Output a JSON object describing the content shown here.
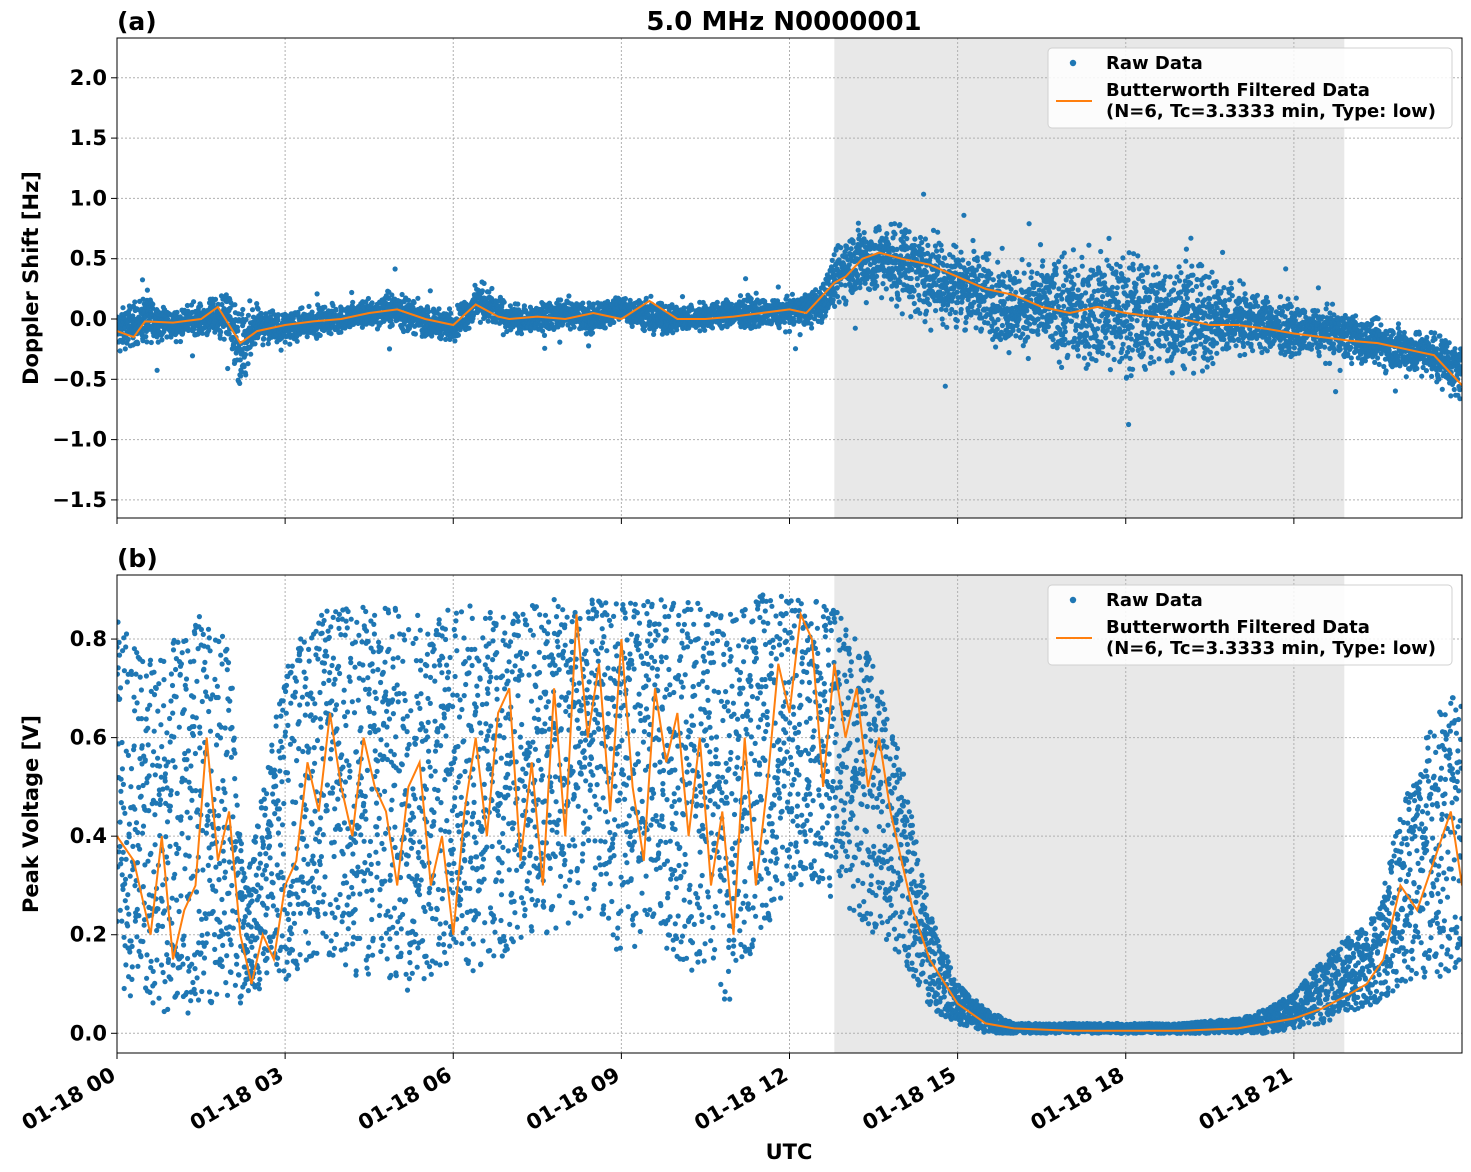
{
  "title": "5.0 MHz N0000001",
  "xlabel": "UTC",
  "x_tick_labels": [
    "01-18 00",
    "01-18 03",
    "01-18 06",
    "01-18 09",
    "01-18 12",
    "01-18 15",
    "01-18 18",
    "01-18 21"
  ],
  "colors": {
    "raw": "#1f77b4",
    "filtered": "#ff7f0e",
    "shade": "#e8e8e8"
  },
  "chart_data": [
    {
      "type": "scatter",
      "panel_label": "(a)",
      "ylabel": "Doppler Shift [Hz]",
      "xlim_hours": [
        0,
        24
      ],
      "ylim": [
        -1.65,
        2.33
      ],
      "y_ticks": [
        -1.5,
        -1.0,
        -0.5,
        0.0,
        0.5,
        1.0,
        1.5,
        2.0
      ],
      "y_tick_labels": [
        "−1.5",
        "−1.0",
        "−0.5",
        "0.0",
        "0.5",
        "1.0",
        "1.5",
        "2.0"
      ],
      "shaded_span_hours": [
        12.8,
        21.9
      ],
      "grid": true,
      "legend_placement": "upper-right",
      "legend": [
        "Raw Data",
        "Butterworth Filtered Data",
        "(N=6, Tc=3.3333 min, Type: low)"
      ],
      "series": [
        {
          "name": "Raw Data",
          "style": "points",
          "x_hours": [
            0,
            0.5,
            1,
            1.5,
            2,
            2.2,
            2.5,
            3,
            3.5,
            4,
            4.5,
            5,
            5.5,
            6,
            6.5,
            7,
            7.5,
            8,
            8.5,
            9,
            9.5,
            10,
            10.5,
            11,
            11.5,
            12,
            12.5,
            12.8,
            13,
            13.3,
            13.6,
            14,
            14.5,
            15,
            15.5,
            16,
            16.5,
            17,
            17.5,
            18,
            18.5,
            19,
            19.5,
            20,
            20.5,
            21,
            21.5,
            22,
            22.5,
            23,
            23.5,
            24
          ],
          "center": [
            -0.1,
            0.0,
            -0.05,
            0.0,
            0.02,
            -0.3,
            -0.05,
            -0.08,
            -0.02,
            0.0,
            0.05,
            0.08,
            -0.02,
            -0.05,
            0.15,
            0.0,
            0.0,
            0.05,
            0.0,
            0.1,
            0.0,
            0.0,
            0.02,
            0.05,
            0.05,
            0.05,
            0.1,
            0.3,
            0.45,
            0.5,
            0.5,
            0.45,
            0.35,
            0.3,
            0.2,
            0.1,
            0.1,
            0.05,
            0.1,
            0.05,
            0.05,
            0.0,
            0.0,
            0.0,
            -0.05,
            -0.1,
            -0.1,
            -0.15,
            -0.2,
            -0.25,
            -0.3,
            -0.45
          ],
          "spread": [
            0.2,
            0.25,
            0.15,
            0.15,
            0.25,
            0.5,
            0.2,
            0.15,
            0.15,
            0.15,
            0.15,
            0.2,
            0.15,
            0.15,
            0.2,
            0.15,
            0.15,
            0.15,
            0.15,
            0.15,
            0.15,
            0.15,
            0.15,
            0.15,
            0.15,
            0.15,
            0.2,
            0.3,
            0.35,
            0.4,
            0.4,
            0.45,
            0.45,
            0.45,
            0.45,
            0.45,
            0.5,
            0.55,
            0.6,
            0.6,
            0.6,
            0.55,
            0.5,
            0.4,
            0.3,
            0.25,
            0.25,
            0.25,
            0.25,
            0.25,
            0.25,
            0.3
          ]
        },
        {
          "name": "Butterworth Filtered Data",
          "style": "line",
          "x_hours": [
            0,
            0.3,
            0.5,
            1,
            1.5,
            1.8,
            2,
            2.2,
            2.5,
            3,
            3.5,
            4,
            4.5,
            5,
            5.5,
            6,
            6.4,
            6.8,
            7,
            7.5,
            8,
            8.5,
            9,
            9.5,
            10,
            10.5,
            11,
            11.5,
            12,
            12.3,
            12.6,
            12.8,
            13,
            13.3,
            13.6,
            14,
            14.5,
            15,
            15.5,
            16,
            16.5,
            17,
            17.5,
            18,
            18.5,
            19,
            19.5,
            20,
            20.5,
            21,
            21.5,
            22,
            22.5,
            23,
            23.5,
            24
          ],
          "values": [
            -0.1,
            -0.15,
            -0.02,
            -0.03,
            0.0,
            0.1,
            -0.05,
            -0.2,
            -0.1,
            -0.05,
            -0.02,
            0.0,
            0.05,
            0.08,
            0.0,
            -0.05,
            0.12,
            0.02,
            0.0,
            0.02,
            0.0,
            0.05,
            0.0,
            0.15,
            0.0,
            0.0,
            0.02,
            0.05,
            0.08,
            0.05,
            0.2,
            0.3,
            0.35,
            0.5,
            0.55,
            0.5,
            0.45,
            0.35,
            0.25,
            0.2,
            0.1,
            0.05,
            0.1,
            0.05,
            0.02,
            0.0,
            -0.05,
            -0.05,
            -0.08,
            -0.12,
            -0.15,
            -0.18,
            -0.2,
            -0.25,
            -0.3,
            -0.55
          ]
        }
      ]
    },
    {
      "type": "scatter",
      "panel_label": "(b)",
      "ylabel": "Peak Voltage [V]",
      "xlim_hours": [
        0,
        24
      ],
      "ylim": [
        -0.04,
        0.93
      ],
      "y_ticks": [
        0.0,
        0.2,
        0.4,
        0.6,
        0.8
      ],
      "y_tick_labels": [
        "0.0",
        "0.2",
        "0.4",
        "0.6",
        "0.8"
      ],
      "shaded_span_hours": [
        12.8,
        21.9
      ],
      "grid": true,
      "legend_placement": "upper-right",
      "legend": [
        "Raw Data",
        "Butterworth Filtered Data",
        "(N=6, Tc=3.3333 min, Type: low)"
      ],
      "series": [
        {
          "name": "Raw Data",
          "style": "points",
          "x_hours": [
            0,
            0.5,
            1,
            1.5,
            2,
            2.3,
            2.6,
            3,
            3.5,
            4,
            4.5,
            5,
            5.5,
            6,
            6.5,
            7,
            7.5,
            8,
            8.5,
            9,
            9.5,
            10,
            10.5,
            11,
            11.5,
            12,
            12.5,
            13,
            13.5,
            14,
            14.5,
            15,
            15.5,
            16,
            16.5,
            17,
            18,
            19,
            20,
            20.5,
            21,
            21.5,
            22,
            22.5,
            23,
            23.5,
            24
          ],
          "low": [
            0.1,
            0.05,
            0.02,
            0.05,
            0.05,
            0.05,
            0.1,
            0.1,
            0.15,
            0.12,
            0.1,
            0.08,
            0.1,
            0.15,
            0.1,
            0.15,
            0.2,
            0.2,
            0.25,
            0.15,
            0.2,
            0.15,
            0.1,
            0.05,
            0.2,
            0.3,
            0.3,
            0.25,
            0.2,
            0.15,
            0.05,
            0.02,
            0.0,
            0.0,
            0.0,
            0.0,
            0.0,
            0.0,
            0.0,
            0.0,
            0.01,
            0.02,
            0.04,
            0.06,
            0.1,
            0.12,
            0.1
          ],
          "high": [
            0.85,
            0.75,
            0.8,
            0.85,
            0.8,
            0.3,
            0.5,
            0.75,
            0.85,
            0.87,
            0.87,
            0.87,
            0.85,
            0.87,
            0.87,
            0.85,
            0.88,
            0.88,
            0.88,
            0.88,
            0.88,
            0.88,
            0.87,
            0.85,
            0.89,
            0.89,
            0.88,
            0.85,
            0.75,
            0.55,
            0.25,
            0.1,
            0.05,
            0.02,
            0.02,
            0.02,
            0.02,
            0.02,
            0.03,
            0.05,
            0.08,
            0.15,
            0.2,
            0.25,
            0.5,
            0.65,
            0.7
          ]
        },
        {
          "name": "Butterworth Filtered Data",
          "style": "line",
          "x_hours": [
            0,
            0.3,
            0.6,
            0.8,
            1,
            1.2,
            1.4,
            1.6,
            1.8,
            2,
            2.2,
            2.4,
            2.6,
            2.8,
            3,
            3.2,
            3.4,
            3.6,
            3.8,
            4,
            4.2,
            4.4,
            4.6,
            4.8,
            5,
            5.2,
            5.4,
            5.6,
            5.8,
            6,
            6.2,
            6.4,
            6.6,
            6.8,
            7,
            7.2,
            7.4,
            7.6,
            7.8,
            8,
            8.2,
            8.4,
            8.6,
            8.8,
            9,
            9.2,
            9.4,
            9.6,
            9.8,
            10,
            10.2,
            10.4,
            10.6,
            10.8,
            11,
            11.2,
            11.4,
            11.6,
            11.8,
            12,
            12.2,
            12.4,
            12.6,
            12.8,
            13,
            13.2,
            13.4,
            13.6,
            13.8,
            14,
            14.2,
            14.5,
            15,
            15.5,
            16,
            17,
            18,
            19,
            20,
            20.5,
            21,
            21.5,
            22,
            22.3,
            22.6,
            22.9,
            23.2,
            23.5,
            23.8,
            24
          ],
          "values": [
            0.4,
            0.35,
            0.2,
            0.4,
            0.15,
            0.25,
            0.3,
            0.6,
            0.35,
            0.45,
            0.2,
            0.1,
            0.2,
            0.15,
            0.3,
            0.35,
            0.55,
            0.45,
            0.65,
            0.5,
            0.4,
            0.6,
            0.5,
            0.45,
            0.3,
            0.5,
            0.55,
            0.3,
            0.4,
            0.2,
            0.45,
            0.6,
            0.4,
            0.65,
            0.7,
            0.35,
            0.55,
            0.3,
            0.7,
            0.4,
            0.85,
            0.6,
            0.75,
            0.45,
            0.8,
            0.5,
            0.35,
            0.7,
            0.55,
            0.65,
            0.4,
            0.6,
            0.3,
            0.45,
            0.2,
            0.6,
            0.3,
            0.5,
            0.75,
            0.65,
            0.85,
            0.8,
            0.5,
            0.75,
            0.6,
            0.7,
            0.5,
            0.6,
            0.45,
            0.35,
            0.25,
            0.15,
            0.06,
            0.02,
            0.01,
            0.005,
            0.005,
            0.005,
            0.01,
            0.02,
            0.03,
            0.05,
            0.08,
            0.1,
            0.15,
            0.3,
            0.25,
            0.35,
            0.45,
            0.3
          ]
        }
      ]
    }
  ]
}
